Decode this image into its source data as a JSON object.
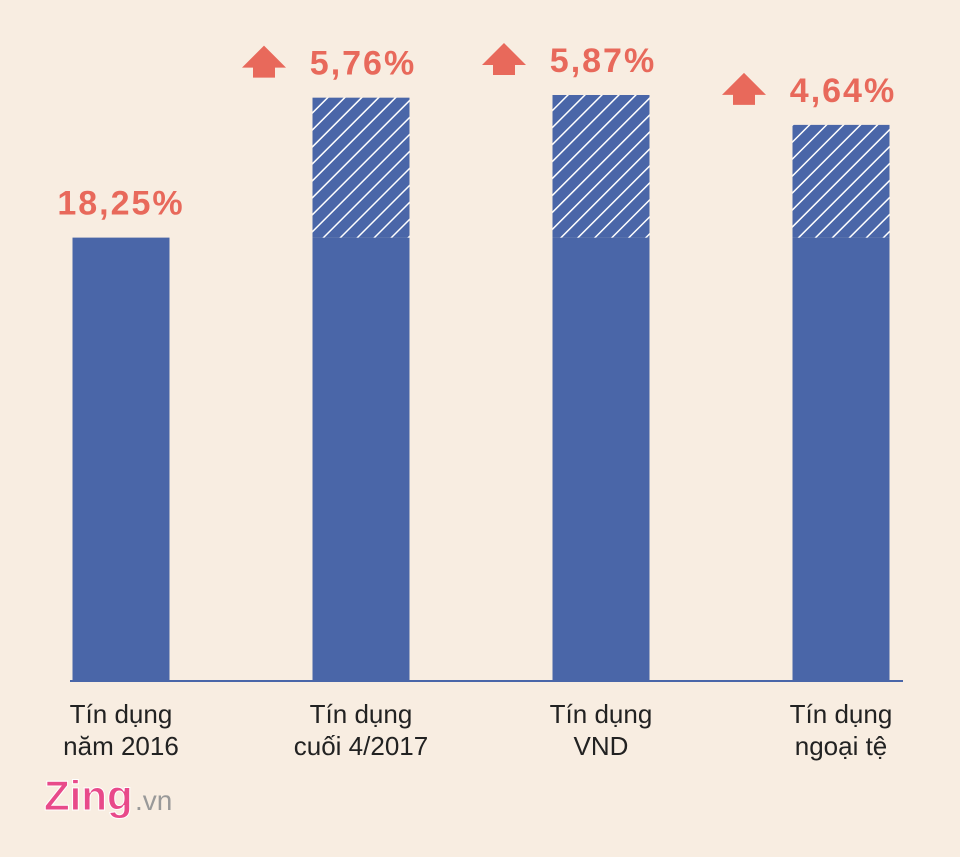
{
  "chart_data": {
    "type": "stacked_bar",
    "categories": [
      [
        "Tín dụng",
        "năm 2016"
      ],
      [
        "Tín dụng",
        "cuối 4/2017"
      ],
      [
        "Tín dụng",
        "VND"
      ],
      [
        "Tín dụng",
        "ngoại tệ"
      ]
    ],
    "series": [
      {
        "color": "#4a66a8",
        "values": [
          18.25,
          18.25,
          18.25,
          18.25
        ],
        "value_labels": [
          "18,25%",
          null,
          null,
          null
        ]
      },
      {
        "color": "#4a66a8",
        "pattern": "hatch",
        "values": [
          null,
          5.76,
          5.87,
          4.64
        ],
        "value_labels": [
          null,
          "5,76%",
          "5,87%",
          "4,64%"
        ]
      }
    ],
    "label_color": "#e8695b",
    "source_brand": "Zing",
    "source_suffix": ".vn"
  }
}
